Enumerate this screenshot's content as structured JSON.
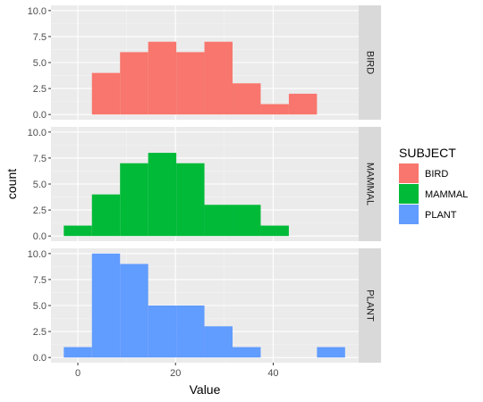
{
  "chart_data": {
    "type": "bar",
    "subtype": "faceted-histogram",
    "xlabel": "Value",
    "ylabel": "count",
    "xlim": [
      -5.5,
      57.5
    ],
    "ylim": [
      -0.5,
      10.5
    ],
    "x_ticks": [
      0,
      20,
      40
    ],
    "y_ticks": [
      0.0,
      2.5,
      5.0,
      7.5,
      10.0
    ],
    "y_tick_labels": [
      "0.0",
      "2.5",
      "5.0",
      "7.5",
      "10.0"
    ],
    "grid": true,
    "bin_width": 5.76,
    "bin_start": -2.88,
    "legend": {
      "title": "SUBJECT",
      "placement": "right",
      "entries": [
        "BIRD",
        "MAMMAL",
        "PLANT"
      ]
    },
    "series": [
      {
        "name": "BIRD",
        "color": "#F8766D",
        "counts": [
          0,
          4,
          6,
          7,
          6,
          7,
          3,
          1,
          2,
          0
        ]
      },
      {
        "name": "MAMMAL",
        "color": "#00BA38",
        "counts": [
          1,
          4,
          7,
          8,
          7,
          3,
          3,
          1,
          0,
          0
        ]
      },
      {
        "name": "PLANT",
        "color": "#619CFF",
        "counts": [
          1,
          10,
          9,
          5,
          5,
          3,
          1,
          0,
          0,
          1
        ]
      }
    ]
  }
}
